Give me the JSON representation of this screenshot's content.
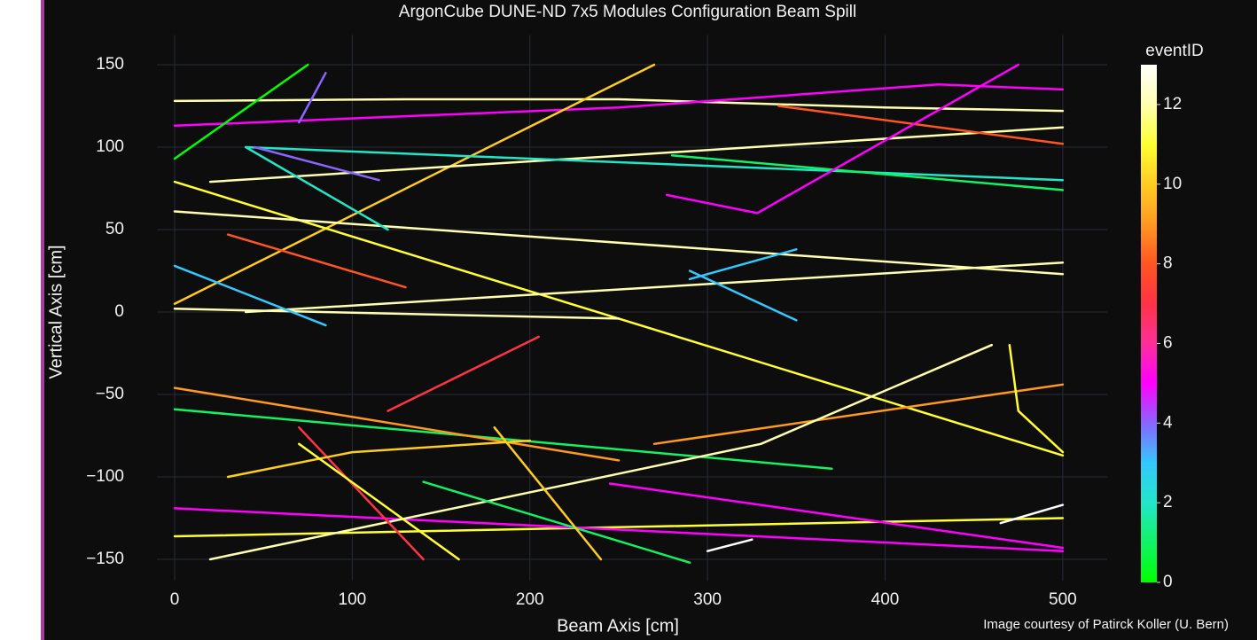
{
  "chart_data": {
    "type": "line",
    "title": "ArgonCube DUNE-ND 7x5 Modules Configuration Beam Spill",
    "x_label": "Beam Axis [cm]",
    "y_label": "Vertical Axis [cm]",
    "colorbar_title": "eventID",
    "credit": "Image courtesy of Patirck Koller (U. Bern)",
    "xlim": [
      -10,
      525
    ],
    "ylim": [
      -163,
      168
    ],
    "xticks": [
      0,
      100,
      200,
      300,
      400,
      500
    ],
    "yticks": [
      {
        "value": -150,
        "label": "−150"
      },
      {
        "value": -100,
        "label": "−100"
      },
      {
        "value": -50,
        "label": "−50"
      },
      0,
      50,
      100,
      150
    ],
    "grid": true,
    "clim": [
      0,
      13
    ],
    "cticks": [
      0,
      2,
      4,
      6,
      8,
      10,
      12
    ],
    "colorscale": [
      {
        "value": 0,
        "color": "#00ff00"
      },
      {
        "value": 2,
        "color": "#22e6c8"
      },
      {
        "value": 3,
        "color": "#33c8ff"
      },
      {
        "value": 4,
        "color": "#8866ff"
      },
      {
        "value": 5,
        "color": "#ff00ff"
      },
      {
        "value": 6,
        "color": "#ff2f9a"
      },
      {
        "value": 7,
        "color": "#ff3344"
      },
      {
        "value": 8,
        "color": "#ff5522"
      },
      {
        "value": 9,
        "color": "#ff9922"
      },
      {
        "value": 10,
        "color": "#ffcc22"
      },
      {
        "value": 11,
        "color": "#ffff33"
      },
      {
        "value": 12,
        "color": "#ffffb0"
      },
      {
        "value": 13,
        "color": "#ffffff"
      }
    ],
    "series": [
      {
        "event": 12,
        "x": [
          0,
          130,
          250,
          400,
          500
        ],
        "values": [
          128,
          129,
          129,
          124,
          122
        ]
      },
      {
        "event": 5,
        "x": [
          0,
          250,
          430,
          500
        ],
        "values": [
          113,
          124,
          138,
          135
        ]
      },
      {
        "event": 0,
        "x": [
          0,
          75
        ],
        "values": [
          93,
          150
        ]
      },
      {
        "event": 10,
        "x": [
          0,
          270
        ],
        "values": [
          5,
          150
        ]
      },
      {
        "event": 11,
        "x": [
          0,
          500
        ],
        "values": [
          79,
          -87
        ]
      },
      {
        "event": 12,
        "x": [
          20,
          500
        ],
        "values": [
          79,
          112
        ]
      },
      {
        "event": 12,
        "x": [
          0,
          500
        ],
        "values": [
          61,
          23
        ]
      },
      {
        "event": 2,
        "x": [
          40,
          500
        ],
        "values": [
          100,
          80
        ]
      },
      {
        "event": 1,
        "x": [
          280,
          500
        ],
        "values": [
          95,
          74
        ]
      },
      {
        "event": 8,
        "x": [
          340,
          500
        ],
        "values": [
          125,
          102
        ]
      },
      {
        "event": 12,
        "x": [
          0,
          250
        ],
        "values": [
          2,
          -4
        ]
      },
      {
        "event": 12,
        "x": [
          40,
          500
        ],
        "values": [
          0,
          30
        ]
      },
      {
        "event": 5,
        "x": [
          277,
          328,
          475
        ],
        "values": [
          71,
          60,
          150
        ]
      },
      {
        "event": 3,
        "x": [
          0,
          85
        ],
        "values": [
          28,
          -8
        ]
      },
      {
        "event": 7,
        "x": [
          120,
          205
        ],
        "values": [
          -60,
          -15
        ]
      },
      {
        "event": 11,
        "x": [
          0,
          500
        ],
        "values": [
          -136,
          -125
        ]
      },
      {
        "event": 5,
        "x": [
          0,
          500
        ],
        "values": [
          -119,
          -145
        ]
      },
      {
        "event": 5,
        "x": [
          245,
          500
        ],
        "values": [
          -104,
          -143
        ]
      },
      {
        "event": 1,
        "x": [
          0,
          370
        ],
        "values": [
          -59,
          -95
        ]
      },
      {
        "event": 9,
        "x": [
          0,
          250
        ],
        "values": [
          -46,
          -90
        ]
      },
      {
        "event": 9,
        "x": [
          270,
          500
        ],
        "values": [
          -80,
          -44
        ]
      },
      {
        "event": 12,
        "x": [
          20,
          330,
          460
        ],
        "values": [
          -150,
          -80,
          -20
        ]
      },
      {
        "event": 1,
        "x": [
          140,
          290
        ],
        "values": [
          -103,
          -152
        ]
      },
      {
        "event": 7,
        "x": [
          70,
          140
        ],
        "values": [
          -70,
          -150
        ]
      },
      {
        "event": 10,
        "x": [
          30,
          100,
          200
        ],
        "values": [
          -100,
          -85,
          -78
        ]
      },
      {
        "event": 13,
        "x": [
          300,
          325
        ],
        "values": [
          -145,
          -138
        ]
      },
      {
        "event": 13,
        "x": [
          465,
          500
        ],
        "values": [
          -128,
          -117
        ]
      },
      {
        "event": 11,
        "x": [
          470,
          475,
          500
        ],
        "values": [
          -20,
          -60,
          -85
        ]
      },
      {
        "event": 4,
        "x": [
          45,
          115
        ],
        "values": [
          100,
          80
        ]
      },
      {
        "event": 4,
        "x": [
          70,
          85
        ],
        "values": [
          115,
          145
        ]
      },
      {
        "event": 2,
        "x": [
          40,
          120
        ],
        "values": [
          100,
          50
        ]
      },
      {
        "event": 3,
        "x": [
          290,
          350
        ],
        "values": [
          25,
          -5
        ]
      },
      {
        "event": 3,
        "x": [
          290,
          350
        ],
        "values": [
          20,
          38
        ]
      },
      {
        "event": 8,
        "x": [
          30,
          130
        ],
        "values": [
          47,
          15
        ]
      },
      {
        "event": 11,
        "x": [
          70,
          160
        ],
        "values": [
          -80,
          -150
        ]
      },
      {
        "event": 10,
        "x": [
          180,
          240
        ],
        "values": [
          -70,
          -150
        ]
      }
    ]
  }
}
